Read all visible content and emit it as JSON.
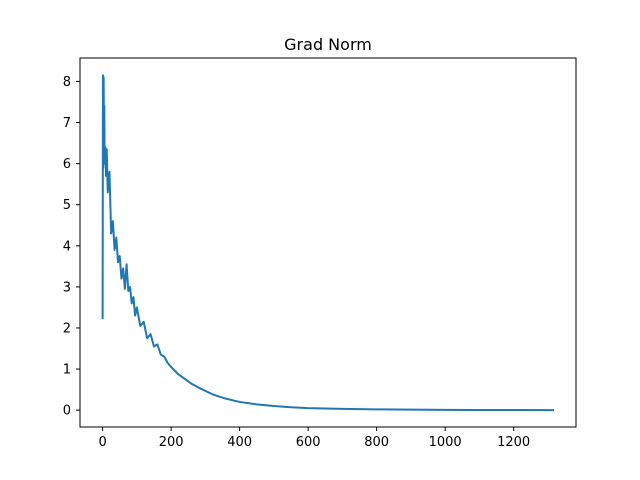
{
  "chart_data": {
    "type": "line",
    "title": "Grad Norm",
    "xlabel": "",
    "ylabel": "",
    "xlim": [
      -66,
      1382
    ],
    "ylim": [
      -0.41,
      8.57
    ],
    "x_ticks": [
      0,
      200,
      400,
      600,
      800,
      1000,
      1200
    ],
    "y_ticks": [
      0,
      1,
      2,
      3,
      4,
      5,
      6,
      7,
      8
    ],
    "grid": false,
    "series": [
      {
        "color": "#1f77b4",
        "x": [
          0,
          1,
          2,
          3,
          4,
          5,
          6,
          8,
          10,
          12,
          15,
          20,
          25,
          30,
          35,
          40,
          45,
          50,
          55,
          60,
          65,
          70,
          75,
          80,
          85,
          90,
          95,
          100,
          110,
          120,
          130,
          140,
          150,
          160,
          170,
          180,
          190,
          200,
          220,
          240,
          260,
          280,
          300,
          320,
          340,
          360,
          380,
          400,
          450,
          500,
          550,
          600,
          700,
          800,
          900,
          1000,
          1100,
          1200,
          1315
        ],
        "y": [
          2.24,
          8.15,
          5.9,
          8.1,
          6.6,
          7.4,
          6.0,
          6.4,
          5.7,
          6.35,
          5.3,
          5.8,
          4.3,
          4.6,
          3.9,
          4.2,
          3.6,
          3.75,
          3.2,
          3.45,
          2.95,
          3.55,
          2.9,
          3.0,
          2.6,
          2.75,
          2.3,
          2.5,
          2.05,
          2.15,
          1.75,
          1.85,
          1.55,
          1.6,
          1.35,
          1.3,
          1.15,
          1.05,
          0.88,
          0.76,
          0.64,
          0.55,
          0.47,
          0.39,
          0.33,
          0.28,
          0.24,
          0.2,
          0.14,
          0.1,
          0.07,
          0.05,
          0.03,
          0.02,
          0.012,
          0.008,
          0.005,
          0.003,
          0.002
        ]
      }
    ]
  }
}
